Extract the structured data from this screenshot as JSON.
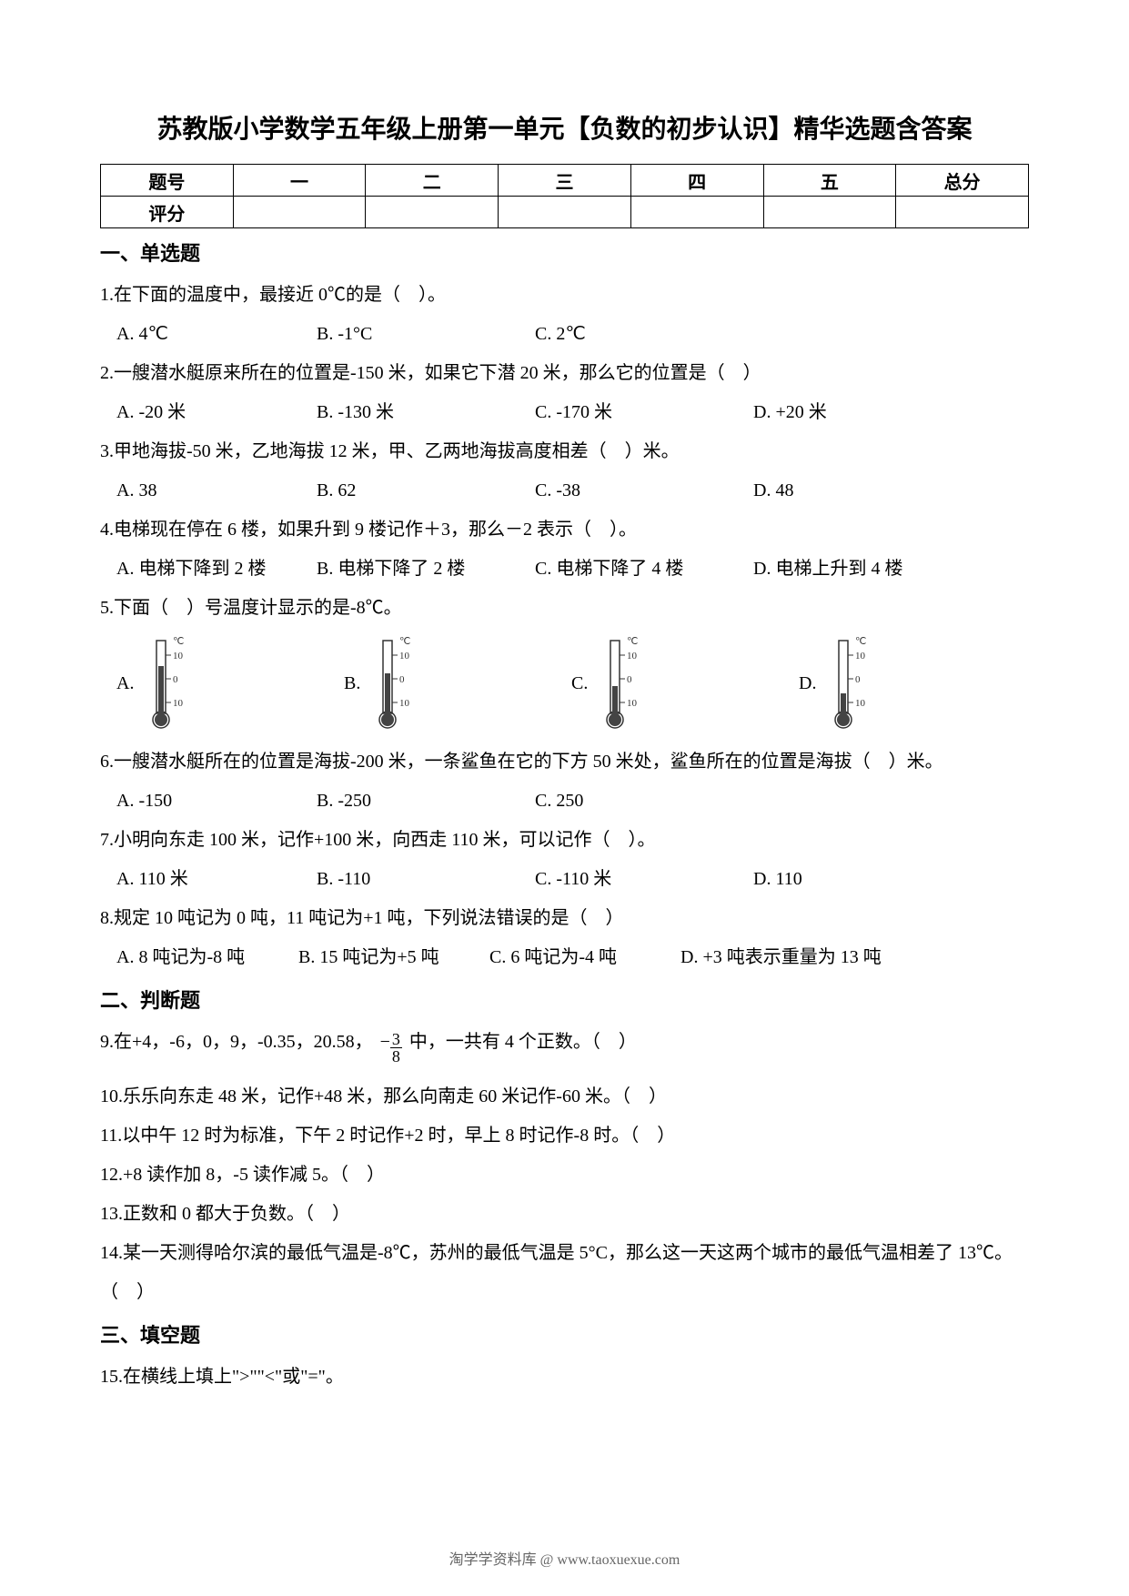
{
  "title": "苏教版小学数学五年级上册第一单元【负数的初步认识】精华选题含答案",
  "table": {
    "row1": [
      "题号",
      "一",
      "二",
      "三",
      "四",
      "五",
      "总分"
    ],
    "row2": [
      "评分",
      "",
      "",
      "",
      "",
      "",
      ""
    ]
  },
  "section1": "一、单选题",
  "q1": "1.在下面的温度中，最接近 0℃的是（　）。",
  "q1a": "A. 4℃",
  "q1b": "B. -1°C",
  "q1c": "C. 2℃",
  "q2": "2.一艘潜水艇原来所在的位置是-150 米，如果它下潜 20 米，那么它的位置是（　）",
  "q2a": "A. -20 米",
  "q2b": "B. -130 米",
  "q2c": "C. -170 米",
  "q2d": "D. +20 米",
  "q3": "3.甲地海拔-50 米，乙地海拔 12 米，甲、乙两地海拔高度相差（　）米。",
  "q3a": "A. 38",
  "q3b": "B. 62",
  "q3c": "C. -38",
  "q3d": "D. 48",
  "q4": "4.电梯现在停在 6 楼，如果升到 9 楼记作＋3，那么－2 表示（　）。",
  "q4a": "A. 电梯下降到 2 楼",
  "q4b": "B. 电梯下降了 2 楼",
  "q4c": "C. 电梯下降了 4 楼",
  "q4d": "D. 电梯上升到 4 楼",
  "q5": "5.下面（　）号温度计显示的是-8℃。",
  "q5a": "A.",
  "q5b": "B.",
  "q5c": "C.",
  "q5d": "D.",
  "thermo": {
    "labels": [
      "℃",
      "10",
      "0",
      "10"
    ],
    "fill_heights": [
      52,
      44,
      30,
      22
    ],
    "stroke": "#333333",
    "fill": "#444444"
  },
  "q6": "6.一艘潜水艇所在的位置是海拔-200 米，一条鲨鱼在它的下方 50 米处，鲨鱼所在的位置是海拔（　）米。",
  "q6a": "A. -150",
  "q6b": "B. -250",
  "q6c": "C. 250",
  "q7": "7.小明向东走 100 米，记作+100 米，向西走 110 米，可以记作（　）。",
  "q7a": "A. 110 米",
  "q7b": "B. -110",
  "q7c": "C. -110 米",
  "q7d": "D. 110",
  "q8": "8.规定 10 吨记为 0 吨，11 吨记为+1 吨，下列说法错误的是（　）",
  "q8a": "A. 8 吨记为-8 吨",
  "q8b": "B. 15 吨记为+5 吨",
  "q8c": "C. 6 吨记为-4 吨",
  "q8d": "D. +3 吨表示重量为 13 吨",
  "section2": "二、判断题",
  "q9_pre": "9.在+4，-6，0，9，-0.35，20.58，",
  "q9_frac_sign": "−",
  "q9_frac_num": "3",
  "q9_frac_den": "8",
  "q9_post": " 中，一共有 4 个正数。（　）",
  "q10": "10.乐乐向东走 48 米，记作+48 米，那么向南走 60 米记作-60 米。（　）",
  "q11": "11.以中午 12 时为标准，下午 2 时记作+2 时，早上 8 时记作-8 时。（　）",
  "q12": "12.+8 读作加 8，-5 读作减 5。（　）",
  "q13": "13.正数和 0 都大于负数。（　）",
  "q14": "14.某一天测得哈尔滨的最低气温是-8℃，苏州的最低气温是 5°C，那么这一天这两个城市的最低气温相差了 13℃。（　）",
  "section3": "三、填空题",
  "q15": "15.在横线上填上\">\"\"<\"或\"=\"。",
  "footer": "淘学学资料库 @ www.taoxuexue.com"
}
